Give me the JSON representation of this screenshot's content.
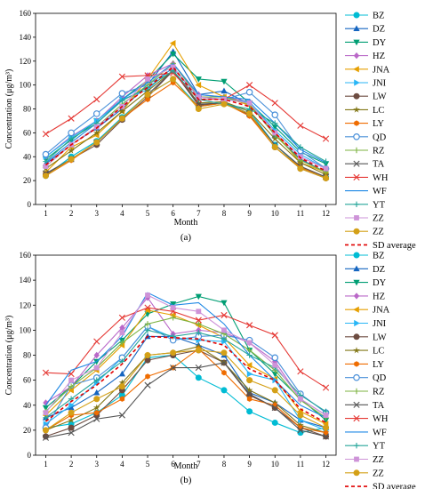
{
  "chart_data": [
    {
      "type": "line",
      "panel_label": "(a)",
      "xlabel": "Month",
      "ylabel": "Concentration (μg/m³)",
      "x": [
        1,
        2,
        3,
        4,
        5,
        6,
        7,
        8,
        9,
        10,
        11,
        12
      ],
      "xlim": [
        0.6,
        12.4
      ],
      "ylim": [
        0,
        160
      ],
      "yticks": [
        0,
        20,
        40,
        60,
        80,
        100,
        120,
        140,
        160
      ],
      "legend_position": "right",
      "series": [
        {
          "name": "BZ",
          "color": "#00bcd4",
          "marker": "circle",
          "values": [
            24,
            40,
            53,
            73,
            92,
            105,
            82,
            85,
            78,
            50,
            31,
            23
          ]
        },
        {
          "name": "DZ",
          "color": "#1565c0",
          "marker": "triangle-up",
          "values": [
            34,
            50,
            64,
            80,
            100,
            128,
            92,
            95,
            84,
            58,
            38,
            27
          ]
        },
        {
          "name": "DY",
          "color": "#009e73",
          "marker": "triangle-down",
          "values": [
            38,
            54,
            70,
            88,
            104,
            126,
            105,
            103,
            85,
            65,
            44,
            34
          ]
        },
        {
          "name": "HZ",
          "color": "#ba68c8",
          "marker": "diamond",
          "values": [
            40,
            57,
            70,
            90,
            108,
            118,
            92,
            90,
            86,
            60,
            40,
            30
          ]
        },
        {
          "name": "JNA",
          "color": "#e69f00",
          "marker": "triangle-left",
          "values": [
            27,
            48,
            58,
            78,
            105,
            135,
            100,
            90,
            83,
            60,
            35,
            27
          ]
        },
        {
          "name": "JNI",
          "color": "#29b6f6",
          "marker": "triangle-right",
          "values": [
            40,
            56,
            70,
            88,
            96,
            115,
            90,
            88,
            86,
            62,
            42,
            30
          ]
        },
        {
          "name": "LW",
          "color": "#6d4c41",
          "marker": "circle",
          "values": [
            25,
            38,
            50,
            71,
            90,
            112,
            83,
            85,
            75,
            48,
            30,
            22
          ]
        },
        {
          "name": "LC",
          "color": "#827717",
          "marker": "star",
          "values": [
            30,
            45,
            60,
            78,
            95,
            112,
            85,
            86,
            78,
            55,
            35,
            25
          ]
        },
        {
          "name": "LY",
          "color": "#ef6c00",
          "marker": "hexagon",
          "values": [
            24,
            37,
            52,
            72,
            88,
            102,
            82,
            85,
            74,
            48,
            31,
            23
          ]
        },
        {
          "name": "QD",
          "color": "#4a90d9",
          "marker": "circle-open",
          "values": [
            42,
            60,
            76,
            93,
            100,
            114,
            90,
            88,
            94,
            75,
            45,
            30
          ]
        },
        {
          "name": "RZ",
          "color": "#7cb342",
          "marker": "plus",
          "values": [
            32,
            50,
            65,
            84,
            100,
            118,
            90,
            90,
            84,
            58,
            37,
            27
          ]
        },
        {
          "name": "TA",
          "color": "#555555",
          "marker": "x",
          "values": [
            26,
            38,
            52,
            72,
            92,
            112,
            84,
            85,
            76,
            50,
            32,
            23
          ]
        },
        {
          "name": "WH",
          "color": "#e53935",
          "marker": "x",
          "values": [
            59,
            72,
            88,
            107,
            108,
            110,
            88,
            88,
            100,
            85,
            66,
            55
          ]
        },
        {
          "name": "WF",
          "color": "#1e88e5",
          "marker": "none",
          "values": [
            35,
            52,
            68,
            88,
            102,
            118,
            92,
            90,
            88,
            68,
            46,
            35
          ]
        },
        {
          "name": "YT",
          "color": "#26a69a",
          "marker": "plus",
          "values": [
            36,
            55,
            68,
            87,
            98,
            112,
            88,
            84,
            80,
            68,
            48,
            36
          ]
        },
        {
          "name": "ZZ",
          "color": "#ce93d8",
          "marker": "square",
          "values": [
            32,
            50,
            65,
            82,
            105,
            115,
            90,
            88,
            85,
            60,
            40,
            30
          ]
        },
        {
          "name": "ZZ",
          "color": "#d4a017",
          "marker": "circle",
          "values": [
            24,
            38,
            52,
            72,
            92,
            105,
            80,
            84,
            76,
            48,
            30,
            22
          ]
        },
        {
          "name": "SD average",
          "color": "#e00000",
          "marker": "none",
          "dashed": true,
          "values": [
            33,
            50,
            64,
            82,
            98,
            115,
            88,
            88,
            82,
            60,
            39,
            28
          ]
        }
      ]
    },
    {
      "type": "line",
      "panel_label": "(b)",
      "xlabel": "Month",
      "ylabel": "Concentration (μg/m³)",
      "x": [
        1,
        2,
        3,
        4,
        5,
        6,
        7,
        8,
        9,
        10,
        11,
        12
      ],
      "xlim": [
        0.6,
        12.4
      ],
      "ylim": [
        0,
        160
      ],
      "yticks": [
        0,
        20,
        40,
        60,
        80,
        100,
        120,
        140,
        160
      ],
      "legend_position": "right",
      "series": [
        {
          "name": "BZ",
          "color": "#00bcd4",
          "marker": "circle",
          "values": [
            22,
            25,
            34,
            48,
            78,
            80,
            62,
            52,
            35,
            26,
            18,
            22
          ]
        },
        {
          "name": "DZ",
          "color": "#1565c0",
          "marker": "triangle-up",
          "values": [
            30,
            38,
            50,
            65,
            95,
            95,
            88,
            80,
            50,
            42,
            28,
            22
          ]
        },
        {
          "name": "DY",
          "color": "#009e73",
          "marker": "triangle-down",
          "values": [
            38,
            55,
            75,
            92,
            113,
            121,
            127,
            122,
            84,
            65,
            45,
            28
          ]
        },
        {
          "name": "HZ",
          "color": "#ba68c8",
          "marker": "diamond",
          "values": [
            42,
            55,
            80,
            102,
            126,
            97,
            100,
            98,
            90,
            75,
            45,
            32
          ]
        },
        {
          "name": "JNA",
          "color": "#e69f00",
          "marker": "triangle-left",
          "values": [
            32,
            52,
            68,
            88,
            116,
            112,
            104,
            94,
            72,
            61,
            35,
            25
          ]
        },
        {
          "name": "JNI",
          "color": "#29b6f6",
          "marker": "triangle-right",
          "values": [
            25,
            40,
            58,
            78,
            103,
            94,
            92,
            91,
            65,
            60,
            28,
            20
          ]
        },
        {
          "name": "LW",
          "color": "#6d4c41",
          "marker": "circle",
          "values": [
            15,
            22,
            32,
            52,
            76,
            80,
            84,
            74,
            48,
            38,
            22,
            15
          ]
        },
        {
          "name": "LC",
          "color": "#827717",
          "marker": "star",
          "values": [
            20,
            28,
            38,
            58,
            80,
            82,
            87,
            74,
            52,
            42,
            24,
            18
          ]
        },
        {
          "name": "LY",
          "color": "#ef6c00",
          "marker": "hexagon",
          "values": [
            20,
            32,
            34,
            45,
            63,
            70,
            85,
            66,
            45,
            40,
            22,
            18
          ]
        },
        {
          "name": "QD",
          "color": "#4a90d9",
          "marker": "circle-open",
          "values": [
            22,
            56,
            62,
            78,
            103,
            92,
            95,
            96,
            92,
            78,
            49,
            34
          ]
        },
        {
          "name": "RZ",
          "color": "#7cb342",
          "marker": "plus",
          "values": [
            35,
            55,
            70,
            90,
            105,
            110,
            105,
            97,
            84,
            68,
            44,
            30
          ]
        },
        {
          "name": "TA",
          "color": "#555555",
          "marker": "x",
          "values": [
            14,
            18,
            29,
            32,
            56,
            70,
            70,
            74,
            49,
            38,
            20,
            15
          ]
        },
        {
          "name": "WH",
          "color": "#e53935",
          "marker": "x",
          "values": [
            66,
            65,
            91,
            110,
            118,
            115,
            108,
            112,
            104,
            96,
            67,
            54
          ]
        },
        {
          "name": "WF",
          "color": "#1e88e5",
          "marker": "none",
          "values": [
            40,
            68,
            75,
            95,
            130,
            120,
            122,
            105,
            80,
            60,
            40,
            30
          ]
        },
        {
          "name": "YT",
          "color": "#26a69a",
          "marker": "plus",
          "values": [
            30,
            45,
            60,
            75,
            100,
            95,
            98,
            93,
            80,
            70,
            48,
            35
          ]
        },
        {
          "name": "ZZ",
          "color": "#ce93d8",
          "marker": "square",
          "values": [
            34,
            60,
            70,
            98,
            128,
            118,
            115,
            100,
            90,
            72,
            45,
            32
          ]
        },
        {
          "name": "ZZ",
          "color": "#d4a017",
          "marker": "circle",
          "values": [
            20,
            34,
            45,
            55,
            80,
            82,
            84,
            82,
            60,
            52,
            32,
            22
          ]
        },
        {
          "name": "SD average",
          "color": "#e00000",
          "marker": "none",
          "dashed": true,
          "values": [
            27,
            43,
            56,
            73,
            95,
            94,
            93,
            88,
            69,
            60,
            37,
            26
          ]
        }
      ]
    }
  ]
}
